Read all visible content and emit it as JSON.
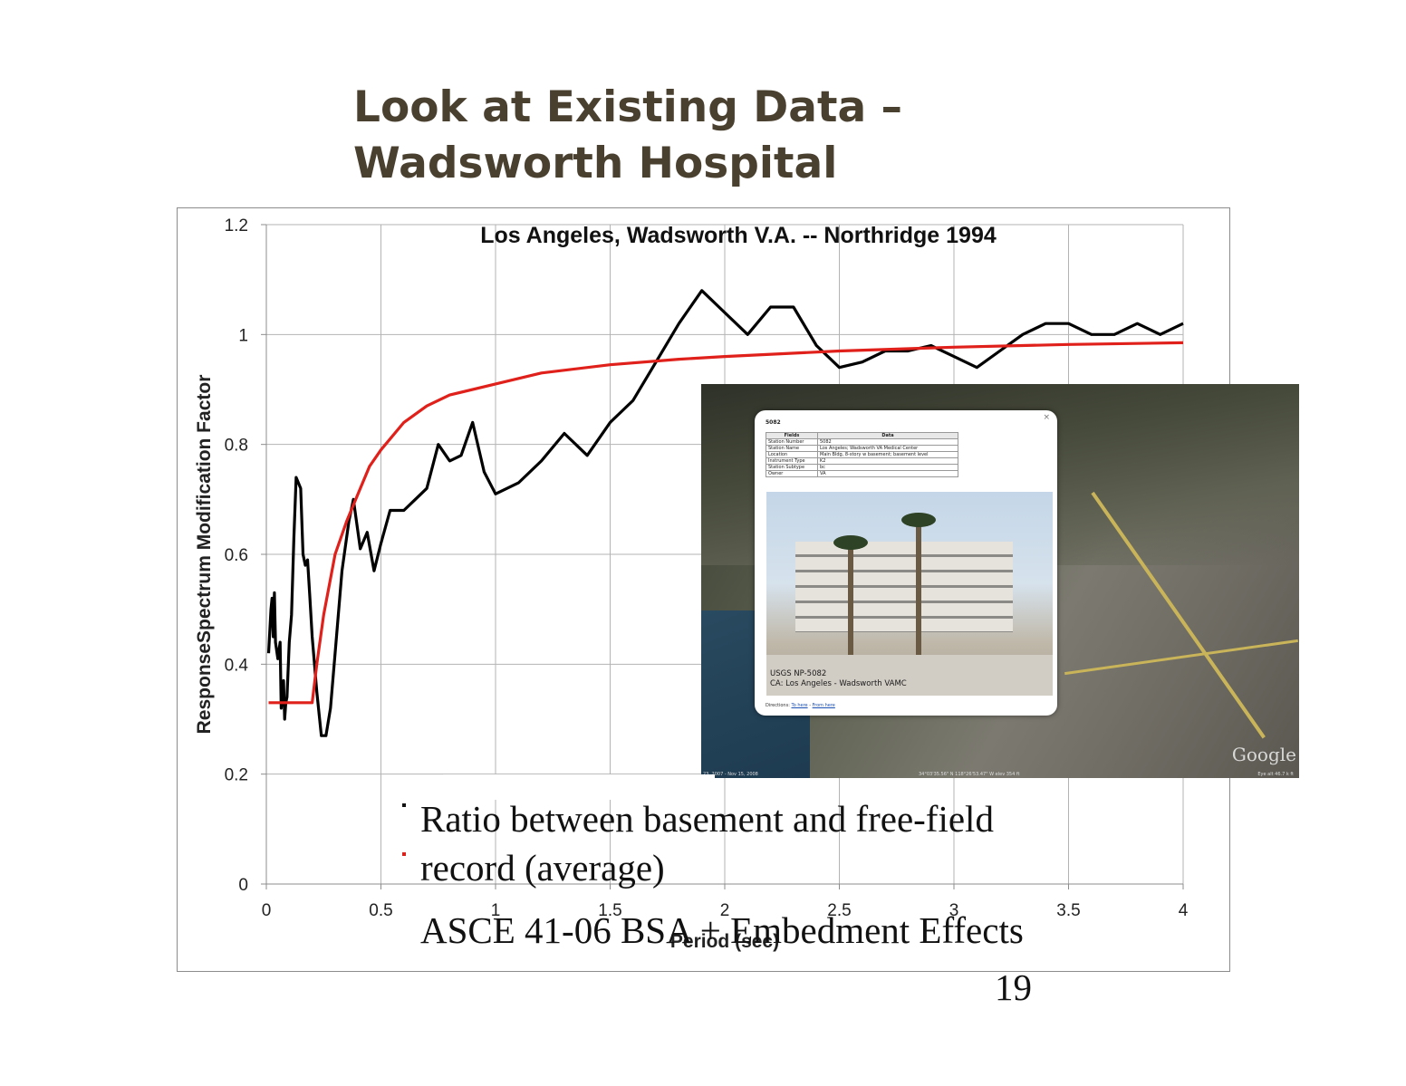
{
  "slide": {
    "title_line1": "Look at Existing Data –",
    "title_line2": "Wadsworth Hospital",
    "bullets": [
      {
        "text": "Ratio between basement and free-field",
        "color": "#111111"
      },
      {
        "text": "record (average)",
        "color": "#d9221c"
      }
    ],
    "footer": "ASCE 41-06 BSA + Embedment Effects",
    "page_number": "19"
  },
  "chart_data": {
    "type": "line",
    "title": "Los Angeles, Wadsworth V.A. -- Northridge 1994",
    "xlabel": "Period (sec)",
    "ylabel": "ResponseSpectrum Modification Factor",
    "xlim": [
      0,
      4
    ],
    "ylim": [
      0,
      1.2
    ],
    "xticks": [
      0,
      0.5,
      1,
      1.5,
      2,
      2.5,
      3,
      3.5,
      4
    ],
    "yticks": [
      0,
      0.2,
      0.4,
      0.6,
      0.8,
      1,
      1.2
    ],
    "grid": true,
    "series": [
      {
        "color": "#000000",
        "x": [
          0.01,
          0.02,
          0.025,
          0.03,
          0.035,
          0.04,
          0.05,
          0.06,
          0.065,
          0.07,
          0.075,
          0.08,
          0.085,
          0.09,
          0.1,
          0.11,
          0.12,
          0.13,
          0.14,
          0.15,
          0.16,
          0.17,
          0.18,
          0.19,
          0.2,
          0.22,
          0.24,
          0.26,
          0.28,
          0.3,
          0.33,
          0.36,
          0.38,
          0.41,
          0.44,
          0.47,
          0.5,
          0.54,
          0.6,
          0.65,
          0.7,
          0.75,
          0.8,
          0.85,
          0.9,
          0.95,
          1.0,
          1.1,
          1.2,
          1.3,
          1.4,
          1.5,
          1.6,
          1.7,
          1.8,
          1.9,
          2.0,
          2.1,
          2.2,
          2.3,
          2.4,
          2.5,
          2.6,
          2.7,
          2.8,
          2.9,
          3.0,
          3.1,
          3.2,
          3.3,
          3.4,
          3.5,
          3.6,
          3.7,
          3.8,
          3.9,
          4.0
        ],
        "values": [
          0.42,
          0.5,
          0.52,
          0.45,
          0.53,
          0.44,
          0.41,
          0.44,
          0.32,
          0.35,
          0.37,
          0.3,
          0.33,
          0.34,
          0.44,
          0.49,
          0.63,
          0.74,
          0.73,
          0.72,
          0.6,
          0.58,
          0.59,
          0.52,
          0.45,
          0.35,
          0.27,
          0.27,
          0.32,
          0.42,
          0.57,
          0.66,
          0.7,
          0.61,
          0.64,
          0.57,
          0.62,
          0.68,
          0.68,
          0.7,
          0.72,
          0.8,
          0.77,
          0.78,
          0.84,
          0.75,
          0.71,
          0.73,
          0.77,
          0.82,
          0.78,
          0.84,
          0.88,
          0.95,
          1.02,
          1.08,
          1.04,
          1.0,
          1.05,
          1.05,
          0.98,
          0.94,
          0.95,
          0.97,
          0.97,
          0.98,
          0.96,
          0.94,
          0.97,
          1.0,
          1.02,
          1.02,
          1.0,
          1.0,
          1.02,
          1.0,
          1.02
        ]
      },
      {
        "color": "#e0201a",
        "x": [
          0.01,
          0.1,
          0.2,
          0.22,
          0.25,
          0.3,
          0.35,
          0.4,
          0.45,
          0.5,
          0.6,
          0.7,
          0.8,
          1.0,
          1.2,
          1.5,
          1.8,
          2.0,
          2.5,
          3.0,
          3.5,
          4.0
        ],
        "values": [
          0.33,
          0.33,
          0.33,
          0.4,
          0.49,
          0.6,
          0.66,
          0.71,
          0.76,
          0.79,
          0.84,
          0.87,
          0.89,
          0.91,
          0.93,
          0.945,
          0.955,
          0.96,
          0.97,
          0.977,
          0.982,
          0.985
        ]
      }
    ]
  },
  "inset": {
    "station_id": "5082",
    "table_header": [
      "Fields",
      "Data"
    ],
    "rows": [
      [
        "Station Number",
        "5082"
      ],
      [
        "Station Name",
        "Los Angeles; Wadsworth VA Medical Center"
      ],
      [
        "Location",
        "Main Bldg, 8-story w basement; basement level"
      ],
      [
        "Instrument Type",
        "K2"
      ],
      [
        "Station Subtype",
        "bc"
      ],
      [
        "Owner",
        "VA"
      ]
    ],
    "photo_caption_1": "USGS NP-5082",
    "photo_caption_2": "CA: Los Angeles - Wadsworth VAMC",
    "directions_label": "Directions:",
    "to_here": "To here",
    "separator": "-",
    "from_here": "From here",
    "map_brand": "Google",
    "imagery_date": "23, 2007 - Nov 15, 2008",
    "coords": "34°03'35.56\" N 118°26'53.47\" W elev 354 ft",
    "eye_alt": "Eye alt 46.7 k ft"
  }
}
